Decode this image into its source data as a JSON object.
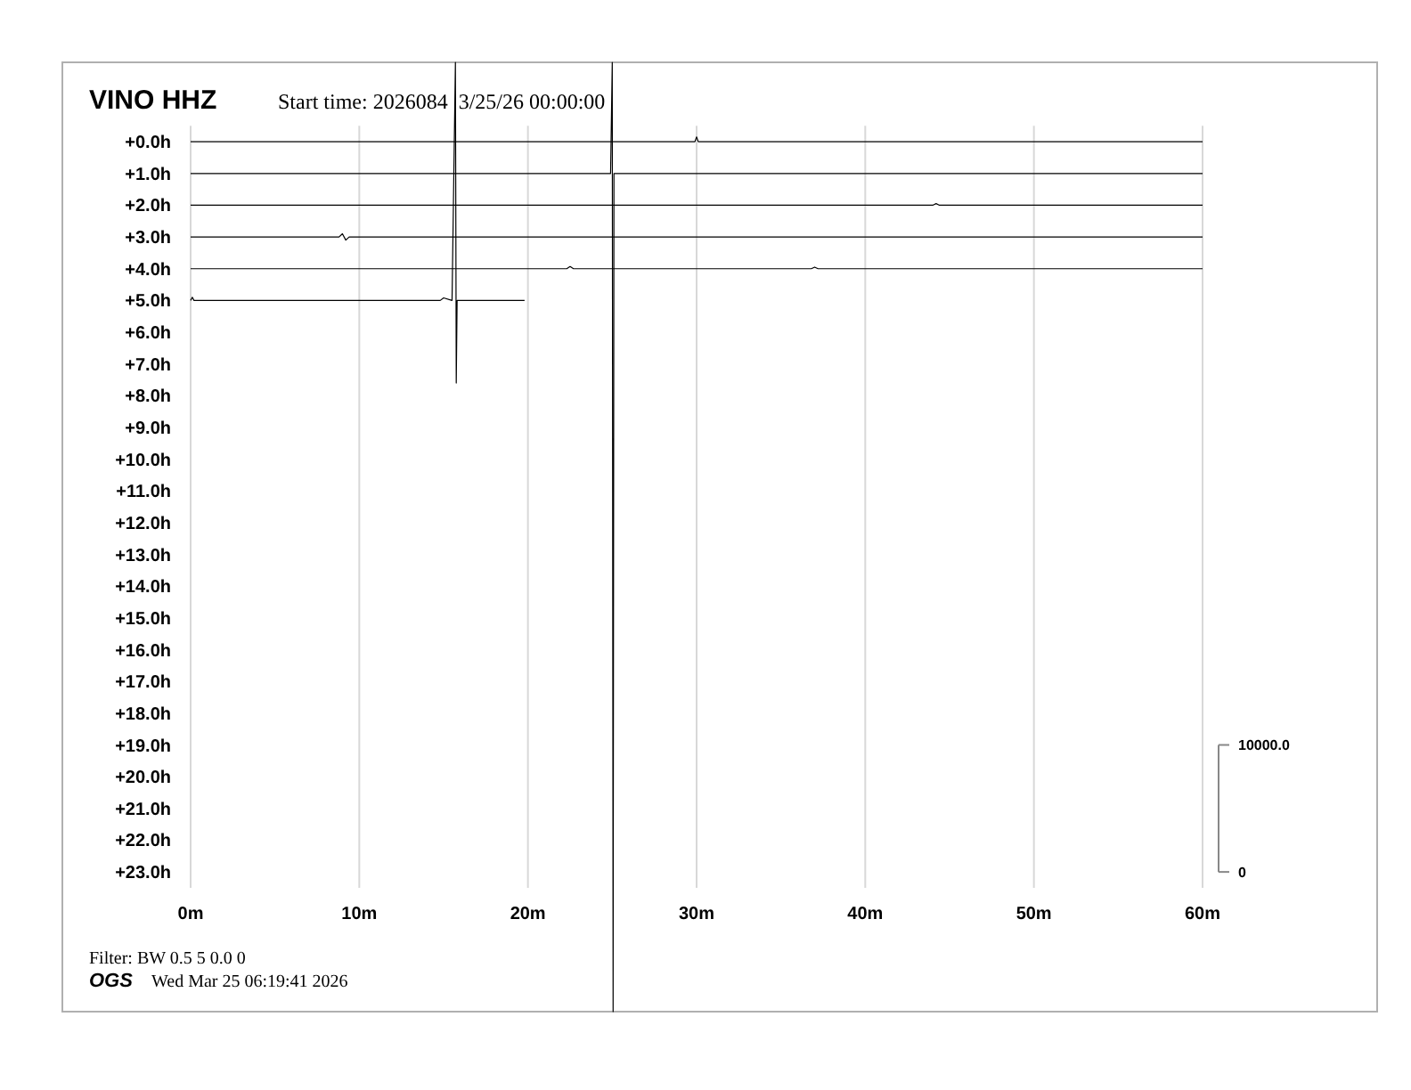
{
  "chart_data": {
    "type": "line",
    "title": "VINO HHZ",
    "subtitle": "Start time: 2026084  3/25/26 00:00:00",
    "xlim": [
      0,
      60
    ],
    "xticks": [
      {
        "value": 0,
        "label": "0m"
      },
      {
        "value": 10,
        "label": "10m"
      },
      {
        "value": 20,
        "label": "20m"
      },
      {
        "value": 30,
        "label": "30m"
      },
      {
        "value": 40,
        "label": "40m"
      },
      {
        "value": 50,
        "label": "50m"
      },
      {
        "value": 60,
        "label": "60m"
      }
    ],
    "ylim": [
      27.4,
      -2.5
    ],
    "yticks": [
      {
        "value": 0,
        "label": "+0.0h"
      },
      {
        "value": 1,
        "label": "+1.0h"
      },
      {
        "value": 2,
        "label": "+2.0h"
      },
      {
        "value": 3,
        "label": "+3.0h"
      },
      {
        "value": 4,
        "label": "+4.0h"
      },
      {
        "value": 5,
        "label": "+5.0h"
      },
      {
        "value": 6,
        "label": "+6.0h"
      },
      {
        "value": 7,
        "label": "+7.0h"
      },
      {
        "value": 8,
        "label": "+8.0h"
      },
      {
        "value": 9,
        "label": "+9.0h"
      },
      {
        "value": 10,
        "label": "+10.0h"
      },
      {
        "value": 11,
        "label": "+11.0h"
      },
      {
        "value": 12,
        "label": "+12.0h"
      },
      {
        "value": 13,
        "label": "+13.0h"
      },
      {
        "value": 14,
        "label": "+14.0h"
      },
      {
        "value": 15,
        "label": "+15.0h"
      },
      {
        "value": 16,
        "label": "+16.0h"
      },
      {
        "value": 17,
        "label": "+17.0h"
      },
      {
        "value": 18,
        "label": "+18.0h"
      },
      {
        "value": 19,
        "label": "+19.0h"
      },
      {
        "value": 20,
        "label": "+20.0h"
      },
      {
        "value": 21,
        "label": "+21.0h"
      },
      {
        "value": 22,
        "label": "+22.0h"
      },
      {
        "value": 23,
        "label": "+23.0h"
      }
    ],
    "y2lim": [
      -11000,
      63750
    ],
    "y2ticks": [
      0,
      {
        "value": 10000,
        "label": "10000.0"
      }
    ],
    "grid": "x",
    "marker": "none",
    "line_style": "solid",
    "series": [
      {
        "color": "#000000",
        "x": [
          0,
          10,
          20,
          29.9,
          30,
          30.1,
          40,
          50,
          60
        ],
        "values": [
          0,
          0,
          0,
          0,
          -0.15,
          0,
          0,
          0,
          0
        ]
      },
      {
        "color": "#000000",
        "x": [
          0,
          10,
          20,
          24.9,
          25,
          25.05,
          25.1,
          30,
          40,
          50,
          60
        ],
        "values": [
          1,
          1,
          1,
          1,
          -2.5,
          27.4,
          1,
          1,
          1,
          1,
          1
        ]
      },
      {
        "color": "#000000",
        "x": [
          0,
          10,
          20,
          30,
          44,
          44.2,
          44.4,
          50,
          60
        ],
        "values": [
          2,
          2,
          2,
          2,
          2,
          1.95,
          2,
          2,
          2
        ]
      },
      {
        "color": "#000000",
        "x": [
          0,
          8.8,
          9,
          9.2,
          9.4,
          20,
          30,
          40,
          50,
          60
        ],
        "values": [
          3,
          3,
          2.9,
          3.1,
          3,
          3,
          3,
          3,
          3,
          3
        ]
      },
      {
        "color": "#000000",
        "x": [
          0,
          10,
          22.3,
          22.5,
          22.7,
          30,
          36.8,
          37,
          37.2,
          50,
          60
        ],
        "values": [
          4,
          4,
          4,
          3.93,
          4,
          4,
          4,
          3.95,
          4,
          4,
          4
        ]
      },
      {
        "color": "#000000",
        "x": [
          0,
          0.1,
          0.2,
          10,
          14.8,
          15,
          15.5,
          15.7,
          15.75,
          15.8,
          16,
          19.8
        ],
        "values": [
          5,
          4.9,
          5,
          5,
          5,
          4.92,
          5,
          -2.5,
          7.6,
          5,
          5,
          5
        ]
      }
    ],
    "annotations": [
      "Filter: BW 0.5 5 0.0 0",
      "OGS",
      "Wed Mar 25 06:19:41 2026"
    ]
  }
}
